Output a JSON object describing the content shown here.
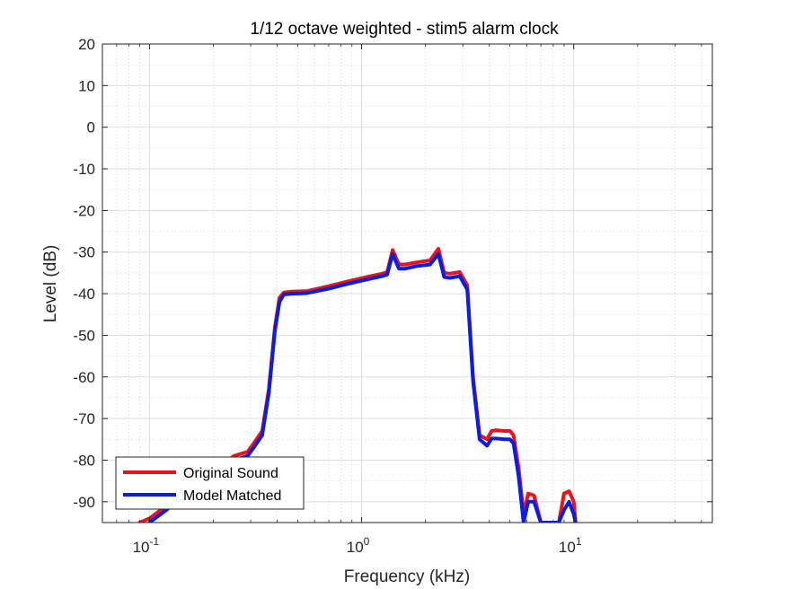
{
  "chart_data": {
    "type": "line",
    "title": "1/12 octave weighted - stim5 alarm clock",
    "xlabel": "Frequency (kHz)",
    "ylabel": "Level (dB)",
    "xscale": "log",
    "xlim": [
      0.06,
      45
    ],
    "ylim": [
      -95,
      20
    ],
    "grid": true,
    "minor_grid": true,
    "legend_position": "bottom-left",
    "x_ticks": [
      {
        "value": 0.1,
        "base": "10",
        "exp": "-1"
      },
      {
        "value": 1,
        "base": "10",
        "exp": "0"
      },
      {
        "value": 10,
        "base": "10",
        "exp": "1"
      }
    ],
    "y_ticks": [
      20,
      10,
      0,
      -10,
      -20,
      -30,
      -40,
      -50,
      -60,
      -70,
      -80,
      -90
    ],
    "series": [
      {
        "name": "Original Sound",
        "color": "#e8141c",
        "x": [
          0.09,
          0.1,
          0.12,
          0.15,
          0.2,
          0.25,
          0.29,
          0.31,
          0.34,
          0.365,
          0.39,
          0.41,
          0.43,
          0.47,
          0.55,
          0.7,
          0.9,
          1.1,
          1.25,
          1.32,
          1.4,
          1.5,
          1.6,
          1.8,
          2.1,
          2.3,
          2.45,
          2.6,
          2.9,
          3.15,
          3.35,
          3.6,
          3.9,
          4.1,
          4.3,
          4.7,
          5.0,
          5.2,
          5.5,
          5.8,
          6.1,
          6.5,
          7.0,
          7.2,
          8.5,
          9.0,
          9.5,
          10.0,
          10.2
        ],
        "y": [
          -95,
          -94,
          -91,
          -87,
          -83,
          -79,
          -78,
          -76,
          -73,
          -63,
          -48,
          -41,
          -39.7,
          -39.5,
          -39.4,
          -38.2,
          -36.8,
          -35.8,
          -35.2,
          -34.8,
          -29.5,
          -33,
          -33,
          -32.5,
          -32,
          -29.2,
          -35,
          -35.2,
          -34.8,
          -38,
          -60,
          -74,
          -75,
          -73,
          -72.8,
          -73,
          -73,
          -74,
          -82,
          -93,
          -88,
          -88.5,
          -95,
          -95,
          -95,
          -88,
          -87.5,
          -90,
          -95
        ]
      },
      {
        "name": "Model Matched",
        "color": "#0a1ee0",
        "x": [
          0.1,
          0.12,
          0.15,
          0.2,
          0.25,
          0.29,
          0.31,
          0.34,
          0.365,
          0.39,
          0.41,
          0.43,
          0.47,
          0.55,
          0.7,
          0.9,
          1.1,
          1.25,
          1.32,
          1.4,
          1.5,
          1.6,
          1.8,
          2.1,
          2.3,
          2.45,
          2.6,
          2.9,
          3.15,
          3.35,
          3.6,
          3.9,
          4.1,
          4.3,
          4.7,
          5.0,
          5.2,
          5.5,
          5.8,
          6.1,
          6.5,
          7.0,
          7.2,
          8.5,
          9.0,
          9.5,
          10.0,
          10.2
        ],
        "y": [
          -95,
          -92,
          -88,
          -84,
          -80,
          -79,
          -77,
          -74,
          -64,
          -49,
          -42,
          -40.2,
          -40,
          -39.9,
          -38.8,
          -37.4,
          -36.4,
          -35.8,
          -35.4,
          -30.5,
          -34,
          -34,
          -33.4,
          -33,
          -30.5,
          -36,
          -36.2,
          -35.8,
          -39,
          -61,
          -75,
          -76.5,
          -74.8,
          -74.8,
          -75,
          -75,
          -76,
          -84,
          -95,
          -90,
          -90,
          -95,
          -95,
          -95,
          -92,
          -90,
          -93,
          -95
        ]
      }
    ]
  }
}
